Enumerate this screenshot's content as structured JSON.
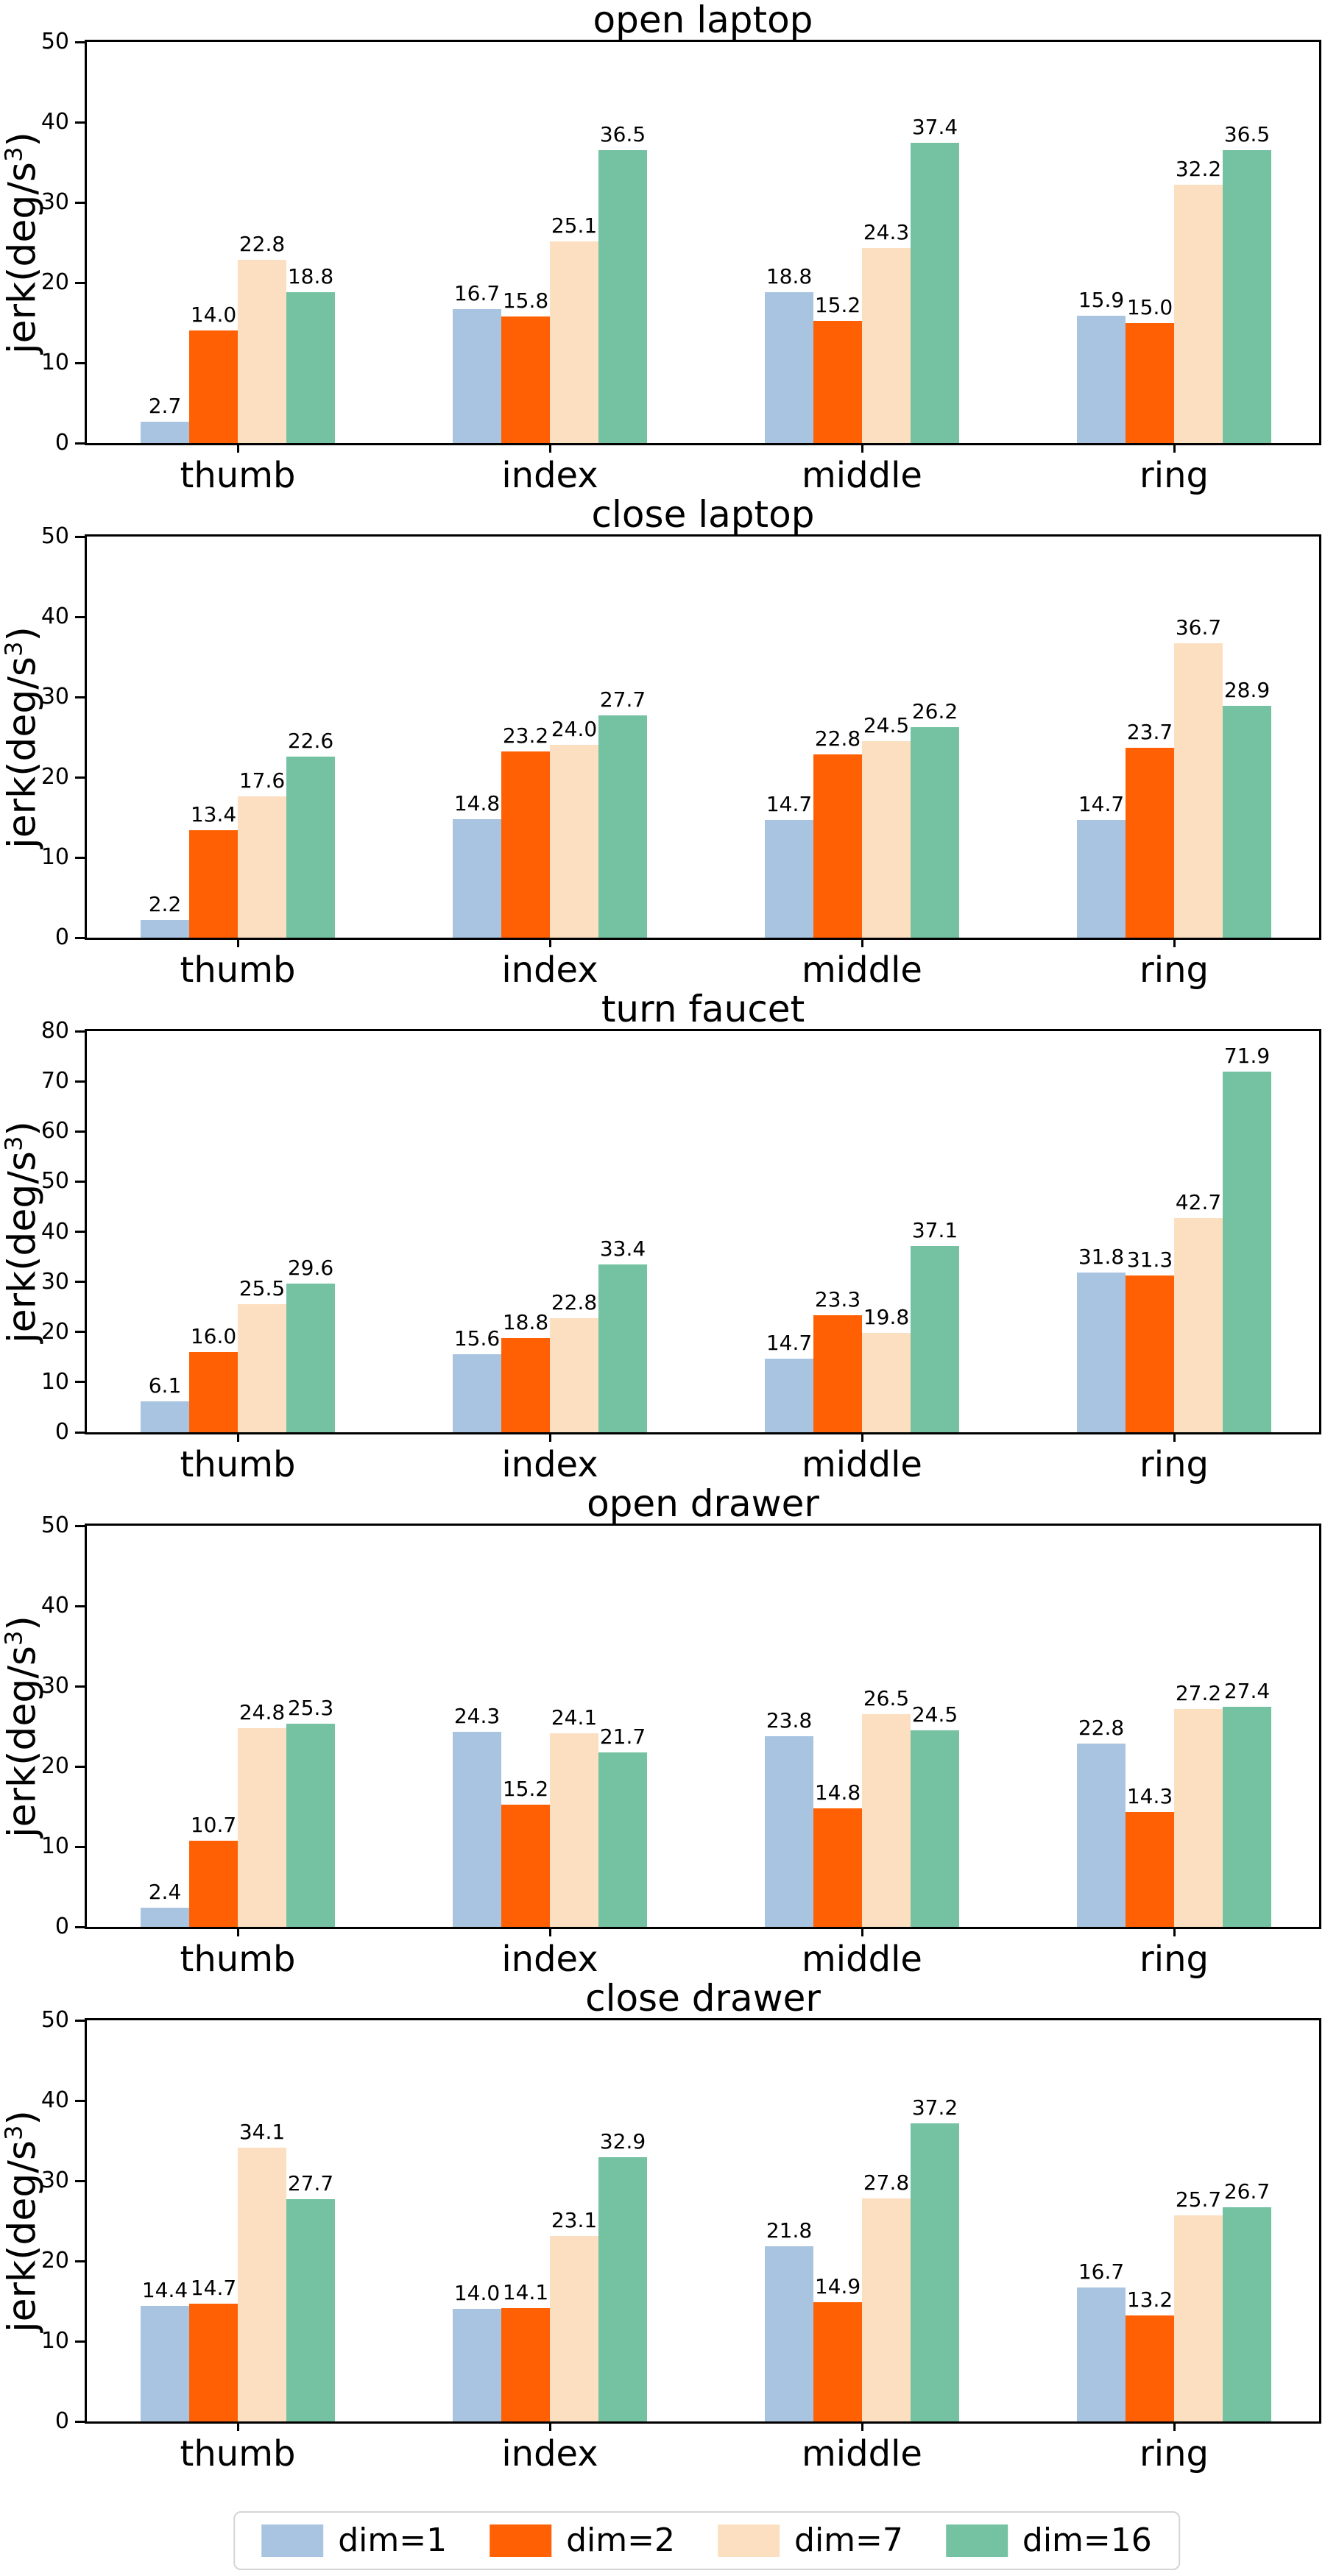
{
  "figure": {
    "description": "five stacked grouped bar charts of finger jerk per task"
  },
  "chart_data": {
    "type": "bar",
    "categories": [
      "thumb",
      "index",
      "middle",
      "ring"
    ],
    "ylabel": "jerk(deg/s³)",
    "series_names": [
      "dim=1",
      "dim=2",
      "dim=7",
      "dim=16"
    ],
    "colors": [
      "#a9c4e1",
      "#ff6003",
      "#fcdfc0",
      "#74c2a2"
    ],
    "legend": {
      "position": "bottom-center",
      "labels": [
        "dim=1",
        "dim=2",
        "dim=7",
        "dim=16"
      ]
    },
    "grid": false,
    "charts": [
      {
        "title": "open laptop",
        "ylim": [
          0,
          50
        ],
        "ytick_step": 10,
        "series": [
          {
            "name": "dim=1",
            "values": [
              2.7,
              16.7,
              18.8,
              15.9
            ]
          },
          {
            "name": "dim=2",
            "values": [
              14.0,
              15.8,
              15.2,
              15.0
            ]
          },
          {
            "name": "dim=7",
            "values": [
              22.8,
              25.1,
              24.3,
              32.2
            ]
          },
          {
            "name": "dim=16",
            "values": [
              18.8,
              36.5,
              37.4,
              36.5
            ]
          }
        ]
      },
      {
        "title": "close laptop",
        "ylim": [
          0,
          50
        ],
        "ytick_step": 10,
        "series": [
          {
            "name": "dim=1",
            "values": [
              2.2,
              14.8,
              14.7,
              14.7
            ]
          },
          {
            "name": "dim=2",
            "values": [
              13.4,
              23.2,
              22.8,
              23.7
            ]
          },
          {
            "name": "dim=7",
            "values": [
              17.6,
              24.0,
              24.5,
              36.7
            ]
          },
          {
            "name": "dim=16",
            "values": [
              22.6,
              27.7,
              26.2,
              28.9
            ]
          }
        ]
      },
      {
        "title": "turn faucet",
        "ylim": [
          0,
          80
        ],
        "ytick_step": 10,
        "series": [
          {
            "name": "dim=1",
            "values": [
              6.1,
              15.6,
              14.7,
              31.8
            ]
          },
          {
            "name": "dim=2",
            "values": [
              16.0,
              18.8,
              23.3,
              31.3
            ]
          },
          {
            "name": "dim=7",
            "values": [
              25.5,
              22.8,
              19.8,
              42.7
            ]
          },
          {
            "name": "dim=16",
            "values": [
              29.6,
              33.4,
              37.1,
              71.9
            ]
          }
        ]
      },
      {
        "title": "open drawer",
        "ylim": [
          0,
          50
        ],
        "ytick_step": 10,
        "series": [
          {
            "name": "dim=1",
            "values": [
              2.4,
              24.3,
              23.8,
              22.8
            ]
          },
          {
            "name": "dim=2",
            "values": [
              10.7,
              15.2,
              14.8,
              14.3
            ]
          },
          {
            "name": "dim=7",
            "values": [
              24.8,
              24.1,
              26.5,
              27.2
            ]
          },
          {
            "name": "dim=16",
            "values": [
              25.3,
              21.7,
              24.5,
              27.4
            ]
          }
        ]
      },
      {
        "title": "close drawer",
        "ylim": [
          0,
          50
        ],
        "ytick_step": 10,
        "series": [
          {
            "name": "dim=1",
            "values": [
              14.4,
              14.0,
              21.8,
              16.7
            ]
          },
          {
            "name": "dim=2",
            "values": [
              14.7,
              14.1,
              14.9,
              13.2
            ]
          },
          {
            "name": "dim=7",
            "values": [
              34.1,
              23.1,
              27.8,
              25.7
            ]
          },
          {
            "name": "dim=16",
            "values": [
              27.7,
              32.9,
              37.2,
              26.7
            ]
          }
        ]
      }
    ]
  }
}
